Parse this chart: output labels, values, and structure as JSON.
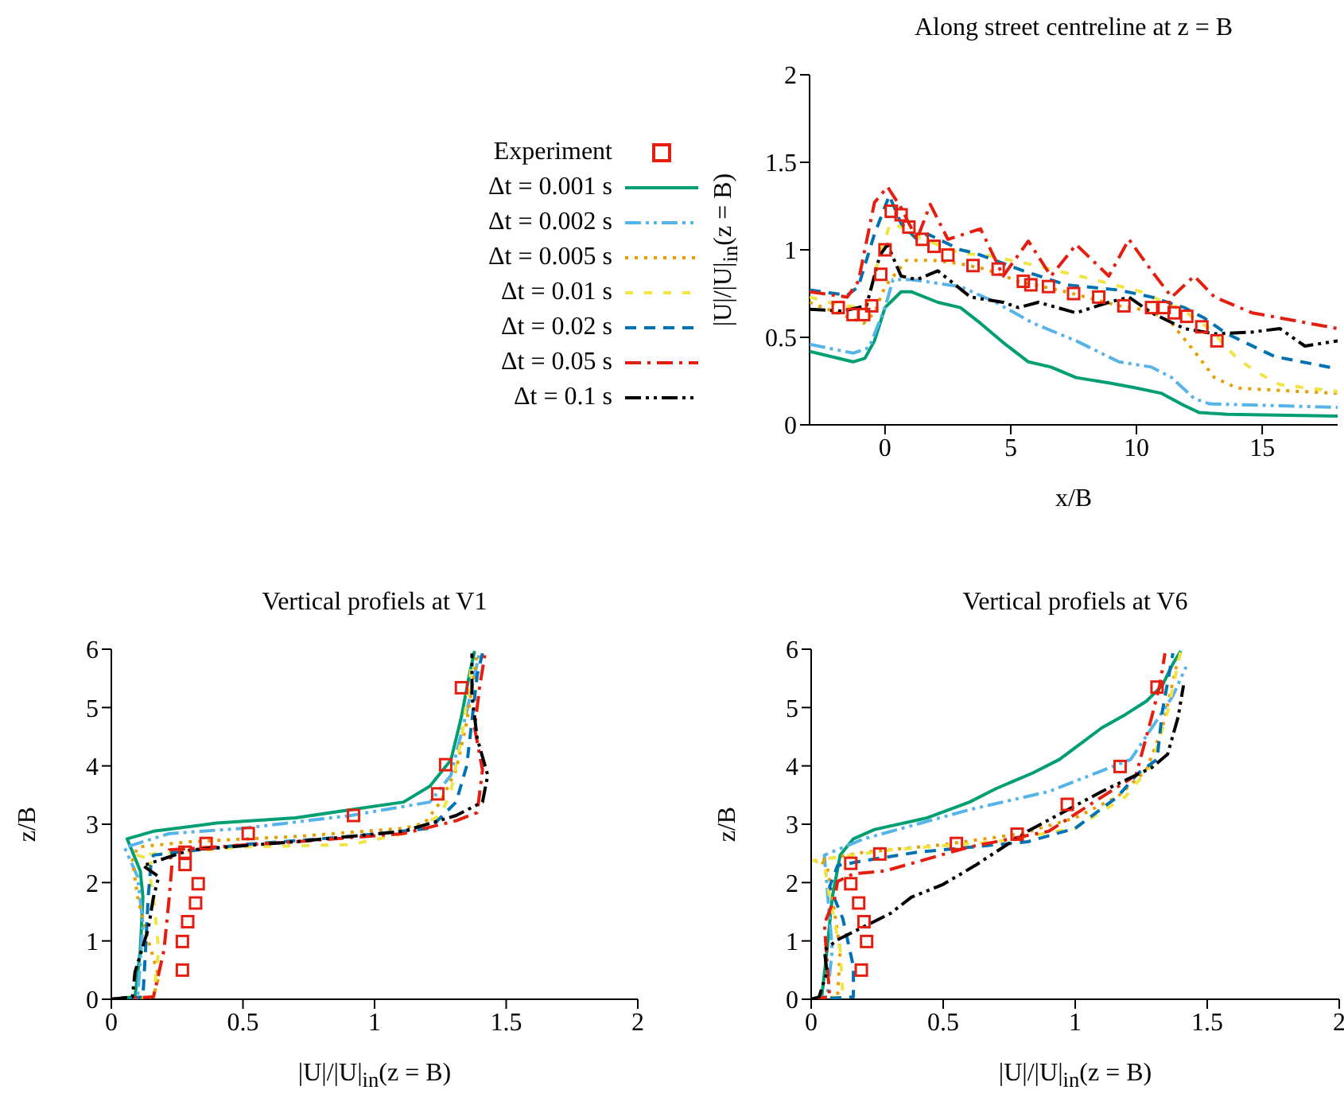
{
  "chart_data": [
    {
      "type": "line",
      "title": "Along street centreline at z = B",
      "xlabel": "x/B",
      "ylabel": "|U|/|U|$_{in}$(z = B)",
      "xlim": [
        -3,
        18
      ],
      "xticks": [
        0,
        5,
        10,
        15
      ],
      "ylim": [
        0,
        2
      ],
      "yticks": [
        0,
        0.5,
        1,
        1.5,
        2
      ],
      "legend": "left",
      "series": [
        {
          "name": "Experiment",
          "type": "scatter",
          "marker": "square",
          "color": "#e51e10",
          "x": [
            -1.86,
            -1.27,
            -0.85,
            -0.53,
            -0.17,
            0,
            0.25,
            0.64,
            0.95,
            1.48,
            1.95,
            2.5,
            3.5,
            4.5,
            5.5,
            5.8,
            6.5,
            7.5,
            8.5,
            9.5,
            10.6,
            11.1,
            11.5,
            12,
            12.6,
            13.2
          ],
          "values": [
            0.67,
            0.63,
            0.63,
            0.68,
            0.86,
            1.0,
            1.22,
            1.2,
            1.13,
            1.06,
            1.02,
            0.97,
            0.91,
            0.89,
            0.82,
            0.8,
            0.79,
            0.75,
            0.73,
            0.68,
            0.67,
            0.67,
            0.64,
            0.62,
            0.56,
            0.48
          ]
        },
        {
          "name": "Δt = 0.001 s",
          "type": "line",
          "line_style": "solid",
          "color": "#009e73",
          "x": [
            -3,
            -1.27,
            -0.8,
            -0.42,
            0,
            0.64,
            1.06,
            2.1,
            3,
            3.8,
            4.7,
            5.7,
            6.6,
            7.6,
            8.9,
            10,
            11,
            11.9,
            12.5,
            13.6,
            18
          ],
          "values": [
            0.42,
            0.36,
            0.38,
            0.48,
            0.67,
            0.76,
            0.76,
            0.7,
            0.67,
            0.58,
            0.47,
            0.36,
            0.33,
            0.27,
            0.24,
            0.21,
            0.18,
            0.11,
            0.07,
            0.06,
            0.05
          ]
        },
        {
          "name": "Δt = 0.002 s",
          "type": "line",
          "line_style": "dashed",
          "color": "#56b4e9",
          "x": [
            -3,
            -1.27,
            -0.64,
            0,
            0.32,
            1.06,
            3,
            4.4,
            5.9,
            7.6,
            9.3,
            10.6,
            11.4,
            12.3,
            12.9,
            18
          ],
          "values": [
            0.46,
            0.41,
            0.44,
            0.67,
            0.83,
            0.83,
            0.79,
            0.7,
            0.58,
            0.48,
            0.36,
            0.33,
            0.27,
            0.15,
            0.12,
            0.1
          ]
        },
        {
          "name": "Δt = 0.005 s",
          "type": "line",
          "line_style": "dotted",
          "color": "#e69f00",
          "x": [
            -3,
            -1.9,
            -0.85,
            -0.42,
            0,
            0.85,
            1.9,
            3,
            4,
            5.3,
            7.2,
            9.3,
            10.6,
            11.4,
            12.3,
            13.1,
            14,
            15.3,
            18
          ],
          "values": [
            0.7,
            0.64,
            0.58,
            0.64,
            0.79,
            0.94,
            0.94,
            0.92,
            0.89,
            0.82,
            0.76,
            0.68,
            0.65,
            0.58,
            0.42,
            0.27,
            0.21,
            0.2,
            0.18
          ]
        },
        {
          "name": "Δt = 0.01 s",
          "type": "line",
          "line_style": "dashed",
          "color": "#f0e442",
          "x": [
            -3,
            -1.7,
            -0.74,
            -0.32,
            0.2,
            0.85,
            1.48,
            2.3,
            3,
            4,
            5.7,
            8.3,
            10.2,
            11.9,
            12.9,
            14,
            14.8,
            15.7,
            18
          ],
          "values": [
            0.73,
            0.68,
            0.67,
            0.91,
            1.15,
            1.12,
            1.06,
            1.02,
            0.98,
            0.97,
            0.92,
            0.83,
            0.76,
            0.65,
            0.55,
            0.38,
            0.3,
            0.23,
            0.19
          ]
        },
        {
          "name": "Δt = 0.02 s",
          "type": "line",
          "line_style": "dashed",
          "color": "#0072b2",
          "x": [
            -3,
            -1.5,
            -1.06,
            -0.42,
            0.17,
            0.64,
            1.27,
            1.7,
            3,
            3.6,
            5.5,
            7.2,
            9.3,
            10.6,
            11.9,
            12.7,
            13.6,
            15.5,
            18
          ],
          "values": [
            0.77,
            0.74,
            0.79,
            1.09,
            1.31,
            1.15,
            1.06,
            1.09,
            1.0,
            0.98,
            0.88,
            0.8,
            0.77,
            0.73,
            0.67,
            0.61,
            0.52,
            0.39,
            0.32
          ]
        },
        {
          "name": "Δt = 0.05 s",
          "type": "line",
          "line_style": "dashed",
          "color": "#e51e10",
          "x": [
            -3,
            -1.5,
            -1.06,
            -0.42,
            0.1,
            0.64,
            1.27,
            1.8,
            2.5,
            3.8,
            4.7,
            5.7,
            6.6,
            7.6,
            8.9,
            9.7,
            10.6,
            11.4,
            12.3,
            13.1,
            14.6,
            18
          ],
          "values": [
            0.76,
            0.73,
            0.82,
            1.27,
            1.36,
            1.24,
            1.06,
            1.26,
            1.06,
            1.12,
            0.85,
            1.05,
            0.85,
            1.03,
            0.85,
            1.06,
            0.88,
            0.73,
            0.85,
            0.73,
            0.64,
            0.55
          ]
        },
        {
          "name": "Δt = 0.1 s",
          "type": "line",
          "line_style": "dashed",
          "color": "#000000",
          "x": [
            -3,
            -1.7,
            -0.74,
            -0.2,
            0.1,
            0.64,
            1.27,
            2.1,
            3.4,
            4.7,
            5.3,
            6.1,
            7.6,
            8.9,
            9.7,
            10.6,
            11.9,
            13.1,
            14.6,
            15.7,
            16.7,
            18
          ],
          "values": [
            0.66,
            0.65,
            0.68,
            0.97,
            1.03,
            0.85,
            0.83,
            0.88,
            0.73,
            0.7,
            0.67,
            0.7,
            0.64,
            0.7,
            0.73,
            0.64,
            0.55,
            0.52,
            0.53,
            0.55,
            0.45,
            0.48
          ]
        }
      ]
    },
    {
      "type": "line",
      "title": "Vertical profiels at V1",
      "xlabel": "|U|/|U|$_{in}$(z = B)",
      "ylabel": "z/B",
      "xlim": [
        0,
        2
      ],
      "xticks": [
        0,
        0.5,
        1,
        1.5,
        2
      ],
      "ylim": [
        0,
        6
      ],
      "yticks": [
        0,
        1,
        2,
        3,
        4,
        5,
        6
      ],
      "series": [
        {
          "type": "scatter",
          "marker": "square",
          "color": "#e51e10",
          "x": [
            0.27,
            0.27,
            0.29,
            0.32,
            0.33,
            0.28,
            0.28,
            0.36,
            0.52,
            0.92,
            1.24,
            1.27,
            1.33
          ],
          "values": [
            0.5,
            0.99,
            1.33,
            1.65,
            1.98,
            2.31,
            2.52,
            2.67,
            2.84,
            3.15,
            3.52,
            4.02,
            5.34
          ]
        },
        {
          "type": "line",
          "line_style": "solid",
          "color": "#009e73",
          "x": [
            0,
            0.09,
            0.11,
            0.12,
            0.11,
            0.06,
            0.16,
            0.4,
            0.7,
            0.91,
            1.11,
            1.21,
            1.29,
            1.33,
            1.36,
            1.38
          ],
          "values": [
            0,
            0.04,
            0.84,
            1.75,
            2.2,
            2.75,
            2.88,
            3.02,
            3.11,
            3.25,
            3.38,
            3.65,
            4.1,
            4.84,
            5.56,
            5.97
          ]
        },
        {
          "type": "line",
          "line_style": "dashed",
          "color": "#56b4e9",
          "x": [
            0,
            0.1,
            0.12,
            0.1,
            0.05,
            0.22,
            0.5,
            0.91,
            1.21,
            1.29,
            1.35,
            1.4
          ],
          "values": [
            0,
            0.04,
            1.29,
            2.1,
            2.6,
            2.84,
            2.93,
            3.15,
            3.38,
            3.84,
            4.93,
            5.97
          ]
        },
        {
          "type": "line",
          "line_style": "dotted",
          "color": "#e69f00",
          "x": [
            0,
            0.16,
            0.18,
            0.14,
            0.1,
            0.08,
            0.1,
            0.3,
            0.7,
            1.11,
            1.19,
            1.25,
            1.31,
            1.35,
            1.39
          ],
          "values": [
            0,
            0.04,
            0.38,
            1.02,
            1.75,
            2.38,
            2.61,
            2.7,
            2.79,
            2.93,
            3.02,
            3.38,
            3.93,
            4.75,
            5.93
          ]
        },
        {
          "type": "line",
          "line_style": "dashed",
          "color": "#f0e442",
          "x": [
            0,
            0.16,
            0.18,
            0.16,
            0.14,
            0.16,
            0.1,
            0.5,
            0.91,
            1.11,
            1.25,
            1.29,
            1.33,
            1.37
          ],
          "values": [
            0,
            0.04,
            0.84,
            1.75,
            2.29,
            2.38,
            2.47,
            2.61,
            2.65,
            2.84,
            3.15,
            3.56,
            4.47,
            5.75
          ]
        },
        {
          "type": "line",
          "line_style": "dashed",
          "color": "#0072b2",
          "x": [
            0,
            0.12,
            0.13,
            0.14,
            0.15,
            0.16,
            0.5,
            0.91,
            1.21,
            1.31,
            1.35,
            1.39,
            1.41
          ],
          "values": [
            0,
            0.04,
            0.84,
            1.75,
            2.29,
            2.47,
            2.65,
            2.79,
            2.93,
            3.38,
            4.0,
            5.56,
            5.93
          ]
        },
        {
          "type": "line",
          "line_style": "dashed",
          "color": "#e51e10",
          "x": [
            0,
            0.16,
            0.2,
            0.22,
            0.23,
            0.22,
            0.7,
            1.11,
            1.31,
            1.39,
            1.41,
            1.38,
            1.4,
            1.42
          ],
          "values": [
            0,
            0.04,
            0.84,
            1.75,
            2.29,
            2.56,
            2.7,
            2.84,
            3.06,
            3.2,
            3.93,
            4.65,
            5.38,
            5.93
          ]
        },
        {
          "type": "line",
          "line_style": "dashed",
          "color": "#000000",
          "x": [
            0,
            0.08,
            0.09,
            0.14,
            0.16,
            0.18,
            0.12,
            0.3,
            0.7,
            1.11,
            1.31,
            1.41,
            1.43,
            1.39,
            1.37,
            1.37
          ],
          "values": [
            0,
            0.04,
            0.47,
            1.2,
            1.75,
            2.1,
            2.29,
            2.56,
            2.7,
            2.88,
            3.15,
            3.38,
            3.84,
            4.47,
            5.2,
            5.93
          ]
        }
      ]
    },
    {
      "type": "line",
      "title": "Vertical profiels at V6",
      "xlabel": "|U|/|U|$_{in}$(z = B)",
      "ylabel": "z/B",
      "xlim": [
        0,
        2
      ],
      "xticks": [
        0,
        0.5,
        1,
        1.5,
        2
      ],
      "ylim": [
        0,
        6
      ],
      "yticks": [
        0,
        1,
        2,
        3,
        4,
        5,
        6
      ],
      "series": [
        {
          "type": "scatter",
          "marker": "square",
          "color": "#e51e10",
          "x": [
            0.19,
            0.21,
            0.2,
            0.18,
            0.15,
            0.15,
            0.26,
            0.55,
            0.78,
            0.97,
            1.17,
            1.31
          ],
          "values": [
            0.5,
            0.99,
            1.33,
            1.65,
            1.98,
            2.33,
            2.49,
            2.67,
            2.83,
            3.34,
            3.99,
            5.35
          ]
        },
        {
          "type": "line",
          "line_style": "solid",
          "color": "#009e73",
          "x": [
            0,
            0.04,
            0.06,
            0.08,
            0.11,
            0.16,
            0.24,
            0.44,
            0.6,
            0.7,
            0.84,
            0.94,
            1.02,
            1.1,
            1.19,
            1.27,
            1.33,
            1.37,
            1.4
          ],
          "values": [
            0,
            0.04,
            0.84,
            1.75,
            2.47,
            2.75,
            2.91,
            3.11,
            3.38,
            3.61,
            3.88,
            4.11,
            4.38,
            4.65,
            4.88,
            5.11,
            5.38,
            5.75,
            5.97
          ]
        },
        {
          "type": "line",
          "line_style": "dashed",
          "color": "#56b4e9",
          "x": [
            0,
            0.06,
            0.08,
            0.06,
            0.05,
            0.2,
            0.36,
            0.6,
            0.9,
            1.21,
            1.29,
            1.37,
            1.42
          ],
          "values": [
            0,
            0.04,
            0.84,
            1.93,
            2.47,
            2.75,
            2.95,
            3.25,
            3.56,
            4.11,
            4.65,
            5.2,
            5.7
          ]
        },
        {
          "type": "line",
          "line_style": "dotted",
          "color": "#e69f00",
          "x": [
            0,
            0.1,
            0.11,
            0.08,
            0.06,
            0.03,
            0.2,
            0.5,
            0.8,
            1.0,
            1.16,
            1.27,
            1.33,
            1.39
          ],
          "values": [
            0,
            0.04,
            0.84,
            1.75,
            2.29,
            2.38,
            2.52,
            2.65,
            2.84,
            3.11,
            3.47,
            3.93,
            4.65,
            5.84
          ]
        },
        {
          "type": "line",
          "line_style": "dashed",
          "color": "#f0e442",
          "x": [
            0,
            0.12,
            0.11,
            0.07,
            0.05,
            0.01,
            0.3,
            0.7,
            1.0,
            1.19,
            1.29,
            1.35,
            1.4
          ],
          "values": [
            0,
            0.04,
            0.84,
            1.75,
            2.29,
            2.38,
            2.56,
            2.7,
            2.93,
            3.47,
            4.02,
            4.93,
            5.97
          ]
        },
        {
          "type": "line",
          "line_style": "dashed",
          "color": "#0072b2",
          "x": [
            0,
            0.16,
            0.16,
            0.12,
            0.07,
            0.1,
            0.18,
            0.4,
            0.82,
            1.0,
            1.16,
            1.24,
            1.31,
            1.33,
            1.37
          ],
          "values": [
            0,
            0.04,
            0.56,
            1.38,
            1.93,
            2.29,
            2.36,
            2.52,
            2.7,
            2.93,
            3.47,
            3.88,
            4.11,
            4.93,
            5.93
          ]
        },
        {
          "type": "line",
          "line_style": "dashed",
          "color": "#e51e10",
          "x": [
            0,
            0.07,
            0.06,
            0.05,
            0.09,
            0.1,
            0.16,
            0.28,
            0.6,
            0.9,
            1.15,
            1.23,
            1.29,
            1.32,
            1.34
          ],
          "values": [
            0,
            0.04,
            0.65,
            1.29,
            1.75,
            2.02,
            2.15,
            2.2,
            2.61,
            2.88,
            3.61,
            3.84,
            4.84,
            5.38,
            5.93
          ]
        },
        {
          "type": "line",
          "line_style": "dashed",
          "color": "#000000",
          "x": [
            0,
            0.03,
            0.06,
            0.05,
            0.1,
            0.18,
            0.3,
            0.38,
            0.5,
            0.62,
            0.82,
            1.1,
            1.29,
            1.35,
            1.39,
            1.41
          ],
          "values": [
            0,
            0.04,
            0.47,
            0.84,
            1.02,
            1.2,
            1.47,
            1.75,
            1.97,
            2.29,
            2.88,
            3.56,
            3.97,
            4.2,
            4.84,
            5.38
          ]
        }
      ]
    }
  ]
}
